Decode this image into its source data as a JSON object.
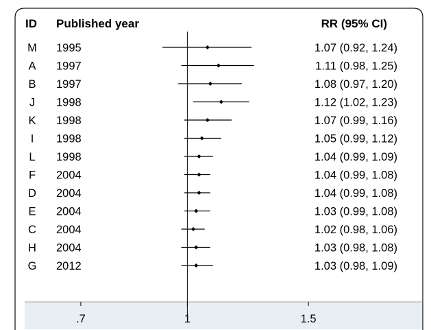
{
  "headers": {
    "id": "ID",
    "year": "Published year",
    "rr": "RR (95% CI)"
  },
  "chart_data": {
    "type": "forest",
    "x_scale": "log",
    "xlim": [
      0.58,
      2.2
    ],
    "reference_line": 1,
    "ticks": [
      {
        "value": 0.7,
        "label": ".7"
      },
      {
        "value": 1,
        "label": "1"
      },
      {
        "value": 1.5,
        "label": "1.5"
      }
    ],
    "rows": [
      {
        "id": "M",
        "year": "1995",
        "rr": 1.07,
        "lo": 0.92,
        "hi": 1.24,
        "label": "1.07 (0.92, 1.24)"
      },
      {
        "id": "A",
        "year": "1997",
        "rr": 1.11,
        "lo": 0.98,
        "hi": 1.25,
        "label": "1.11 (0.98, 1.25)"
      },
      {
        "id": "B",
        "year": "1997",
        "rr": 1.08,
        "lo": 0.97,
        "hi": 1.2,
        "label": "1.08 (0.97, 1.20)"
      },
      {
        "id": "J",
        "year": "1998",
        "rr": 1.12,
        "lo": 1.02,
        "hi": 1.23,
        "label": "1.12 (1.02, 1.23)"
      },
      {
        "id": "K",
        "year": "1998",
        "rr": 1.07,
        "lo": 0.99,
        "hi": 1.16,
        "label": "1.07 (0.99, 1.16)"
      },
      {
        "id": "I",
        "year": "1998",
        "rr": 1.05,
        "lo": 0.99,
        "hi": 1.12,
        "label": "1.05 (0.99, 1.12)"
      },
      {
        "id": "L",
        "year": "1998",
        "rr": 1.04,
        "lo": 0.99,
        "hi": 1.09,
        "label": "1.04 (0.99, 1.09)"
      },
      {
        "id": "F",
        "year": "2004",
        "rr": 1.04,
        "lo": 0.99,
        "hi": 1.08,
        "label": "1.04 (0.99, 1.08)"
      },
      {
        "id": "D",
        "year": "2004",
        "rr": 1.04,
        "lo": 0.99,
        "hi": 1.08,
        "label": "1.04 (0.99, 1.08)"
      },
      {
        "id": "E",
        "year": "2004",
        "rr": 1.03,
        "lo": 0.99,
        "hi": 1.08,
        "label": "1.03 (0.99, 1.08)"
      },
      {
        "id": "C",
        "year": "2004",
        "rr": 1.02,
        "lo": 0.98,
        "hi": 1.06,
        "label": "1.02 (0.98, 1.06)"
      },
      {
        "id": "H",
        "year": "2004",
        "rr": 1.03,
        "lo": 0.98,
        "hi": 1.08,
        "label": "1.03 (0.98, 1.08)"
      },
      {
        "id": "G",
        "year": "2012",
        "rr": 1.03,
        "lo": 0.98,
        "hi": 1.09,
        "label": "1.03 (0.98, 1.09)"
      }
    ],
    "colors": {
      "axis_band": "#e8eff4",
      "frame": "#1a1a1a",
      "marks": "#000000"
    }
  }
}
